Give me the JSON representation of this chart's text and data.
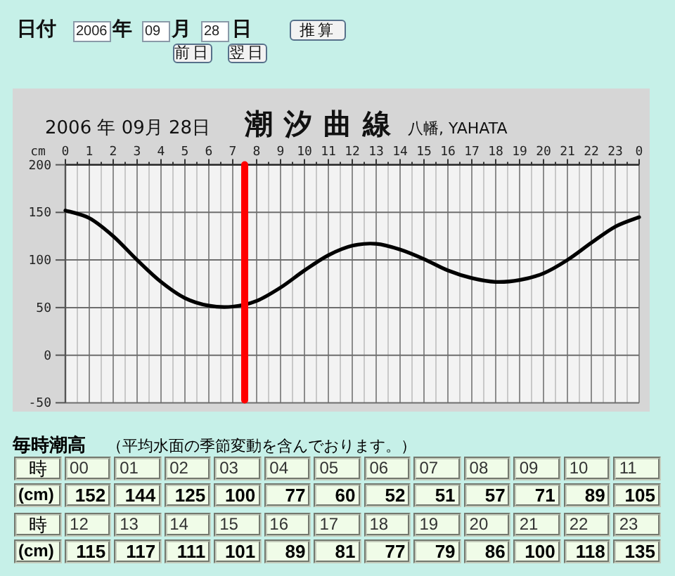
{
  "chart_data": [
    {
      "type": "other",
      "annotations": [
        "日付",
        "2006",
        "年",
        "09",
        "月",
        "28",
        "日",
        "推算",
        "前日",
        "翌日"
      ]
    },
    {
      "type": "line",
      "title": "潮汐曲線",
      "subtitle": "八幡, YAHATA",
      "ylabel": "cm",
      "annotations": [
        "2006 年 09月 28日"
      ],
      "series": [
        {
          "color": "#000000",
          "x": [
            "2006-09-28T00:00",
            "2006-09-28T01:00",
            "2006-09-28T02:00",
            "2006-09-28T03:00",
            "2006-09-28T04:00",
            "2006-09-28T05:00",
            "2006-09-28T06:00",
            "2006-09-28T07:00",
            "2006-09-28T08:00",
            "2006-09-28T09:00",
            "2006-09-28T10:00",
            "2006-09-28T11:00",
            "2006-09-28T12:00",
            "2006-09-28T13:00",
            "2006-09-28T14:00",
            "2006-09-28T15:00",
            "2006-09-28T16:00",
            "2006-09-28T17:00",
            "2006-09-28T18:00",
            "2006-09-28T19:00",
            "2006-09-28T20:00",
            "2006-09-28T21:00",
            "2006-09-28T22:00",
            "2006-09-28T23:00",
            "2006-09-29T00:00"
          ],
          "values": [
            152,
            144,
            125,
            100,
            77,
            60,
            52,
            51,
            57,
            71,
            89,
            105,
            115,
            117,
            111,
            101,
            89,
            81,
            77,
            79,
            86,
            100,
            118,
            135,
            145
          ]
        }
      ],
      "xlim": [
        "2006-09-28T00:00",
        "2006-09-29T00:00"
      ],
      "xticks": [
        {
          "value": "2006-09-28T00:00",
          "label": "0"
        },
        {
          "value": "2006-09-28T00:30",
          "label": null
        },
        {
          "value": "2006-09-28T01:00",
          "label": "1"
        },
        {
          "value": "2006-09-28T01:30",
          "label": null
        },
        {
          "value": "2006-09-28T02:00",
          "label": "2"
        },
        {
          "value": "2006-09-28T02:30",
          "label": null
        },
        {
          "value": "2006-09-28T03:00",
          "label": "3"
        },
        {
          "value": "2006-09-28T03:30",
          "label": null
        },
        {
          "value": "2006-09-28T04:00",
          "label": "4"
        },
        {
          "value": "2006-09-28T04:30",
          "label": null
        },
        {
          "value": "2006-09-28T05:00",
          "label": "5"
        },
        {
          "value": "2006-09-28T05:30",
          "label": null
        },
        {
          "value": "2006-09-28T06:00",
          "label": "6"
        },
        {
          "value": "2006-09-28T06:30",
          "label": null
        },
        {
          "value": "2006-09-28T07:00",
          "label": "7"
        },
        {
          "value": "2006-09-28T07:30",
          "label": null
        },
        {
          "value": "2006-09-28T08:00",
          "label": "8"
        },
        {
          "value": "2006-09-28T08:30",
          "label": null
        },
        {
          "value": "2006-09-28T09:00",
          "label": "9"
        },
        {
          "value": "2006-09-28T09:30",
          "label": null
        },
        {
          "value": "2006-09-28T10:00",
          "label": "10"
        },
        {
          "value": "2006-09-28T10:30",
          "label": null
        },
        {
          "value": "2006-09-28T11:00",
          "label": "11"
        },
        {
          "value": "2006-09-28T11:30",
          "label": null
        },
        {
          "value": "2006-09-28T12:00",
          "label": "12"
        },
        {
          "value": "2006-09-28T12:30",
          "label": null
        },
        {
          "value": "2006-09-28T13:00",
          "label": "13"
        },
        {
          "value": "2006-09-28T13:30",
          "label": null
        },
        {
          "value": "2006-09-28T14:00",
          "label": "14"
        },
        {
          "value": "2006-09-28T14:30",
          "label": null
        },
        {
          "value": "2006-09-28T15:00",
          "label": "15"
        },
        {
          "value": "2006-09-28T15:30",
          "label": null
        },
        {
          "value": "2006-09-28T16:00",
          "label": "16"
        },
        {
          "value": "2006-09-28T16:30",
          "label": null
        },
        {
          "value": "2006-09-28T17:00",
          "label": "17"
        },
        {
          "value": "2006-09-28T17:30",
          "label": null
        },
        {
          "value": "2006-09-28T18:00",
          "label": "18"
        },
        {
          "value": "2006-09-28T18:30",
          "label": null
        },
        {
          "value": "2006-09-28T19:00",
          "label": "19"
        },
        {
          "value": "2006-09-28T19:30",
          "label": null
        },
        {
          "value": "2006-09-28T20:00",
          "label": "20"
        },
        {
          "value": "2006-09-28T20:30",
          "label": null
        },
        {
          "value": "2006-09-28T21:00",
          "label": "21"
        },
        {
          "value": "2006-09-28T21:30",
          "label": null
        },
        {
          "value": "2006-09-28T22:00",
          "label": "22"
        },
        {
          "value": "2006-09-28T22:30",
          "label": null
        },
        {
          "value": "2006-09-28T23:00",
          "label": "23"
        },
        {
          "value": "2006-09-28T23:30",
          "label": null
        },
        {
          "value": "2006-09-29T00:00",
          "label": "0"
        }
      ],
      "ylim": [
        -50,
        200
      ],
      "yticks": [
        -50,
        0,
        50,
        100,
        150,
        200
      ],
      "grid": true,
      "ref_lines": [
        {
          "axis": "x",
          "value": "2006-09-28T07:30",
          "color": "#ff0000"
        }
      ]
    },
    {
      "type": "heatmap",
      "title": "毎時潮高",
      "subtitle": "（平均水面の季節変動を含んでおります。）",
      "xlabel": "時",
      "color": "#f0fce8",
      "categories": [
        "00",
        "01",
        "02",
        "03",
        "04",
        "05",
        "06",
        "07",
        "08",
        "09",
        "10",
        "11"
      ],
      "y_categories": [
        "(cm)"
      ],
      "cells": [
        [
          152,
          144,
          125,
          100,
          77,
          60,
          52,
          51,
          57,
          71,
          89,
          105
        ]
      ],
      "data_labels": true
    },
    {
      "type": "heatmap",
      "xlabel": "時",
      "color": "#f0fce8",
      "categories": [
        "12",
        "13",
        "14",
        "15",
        "16",
        "17",
        "18",
        "19",
        "20",
        "21",
        "22",
        "23"
      ],
      "y_categories": [
        "(cm)"
      ],
      "cells": [
        [
          115,
          117,
          111,
          101,
          89,
          81,
          77,
          79,
          86,
          100,
          118,
          135
        ]
      ],
      "data_labels": true
    }
  ]
}
